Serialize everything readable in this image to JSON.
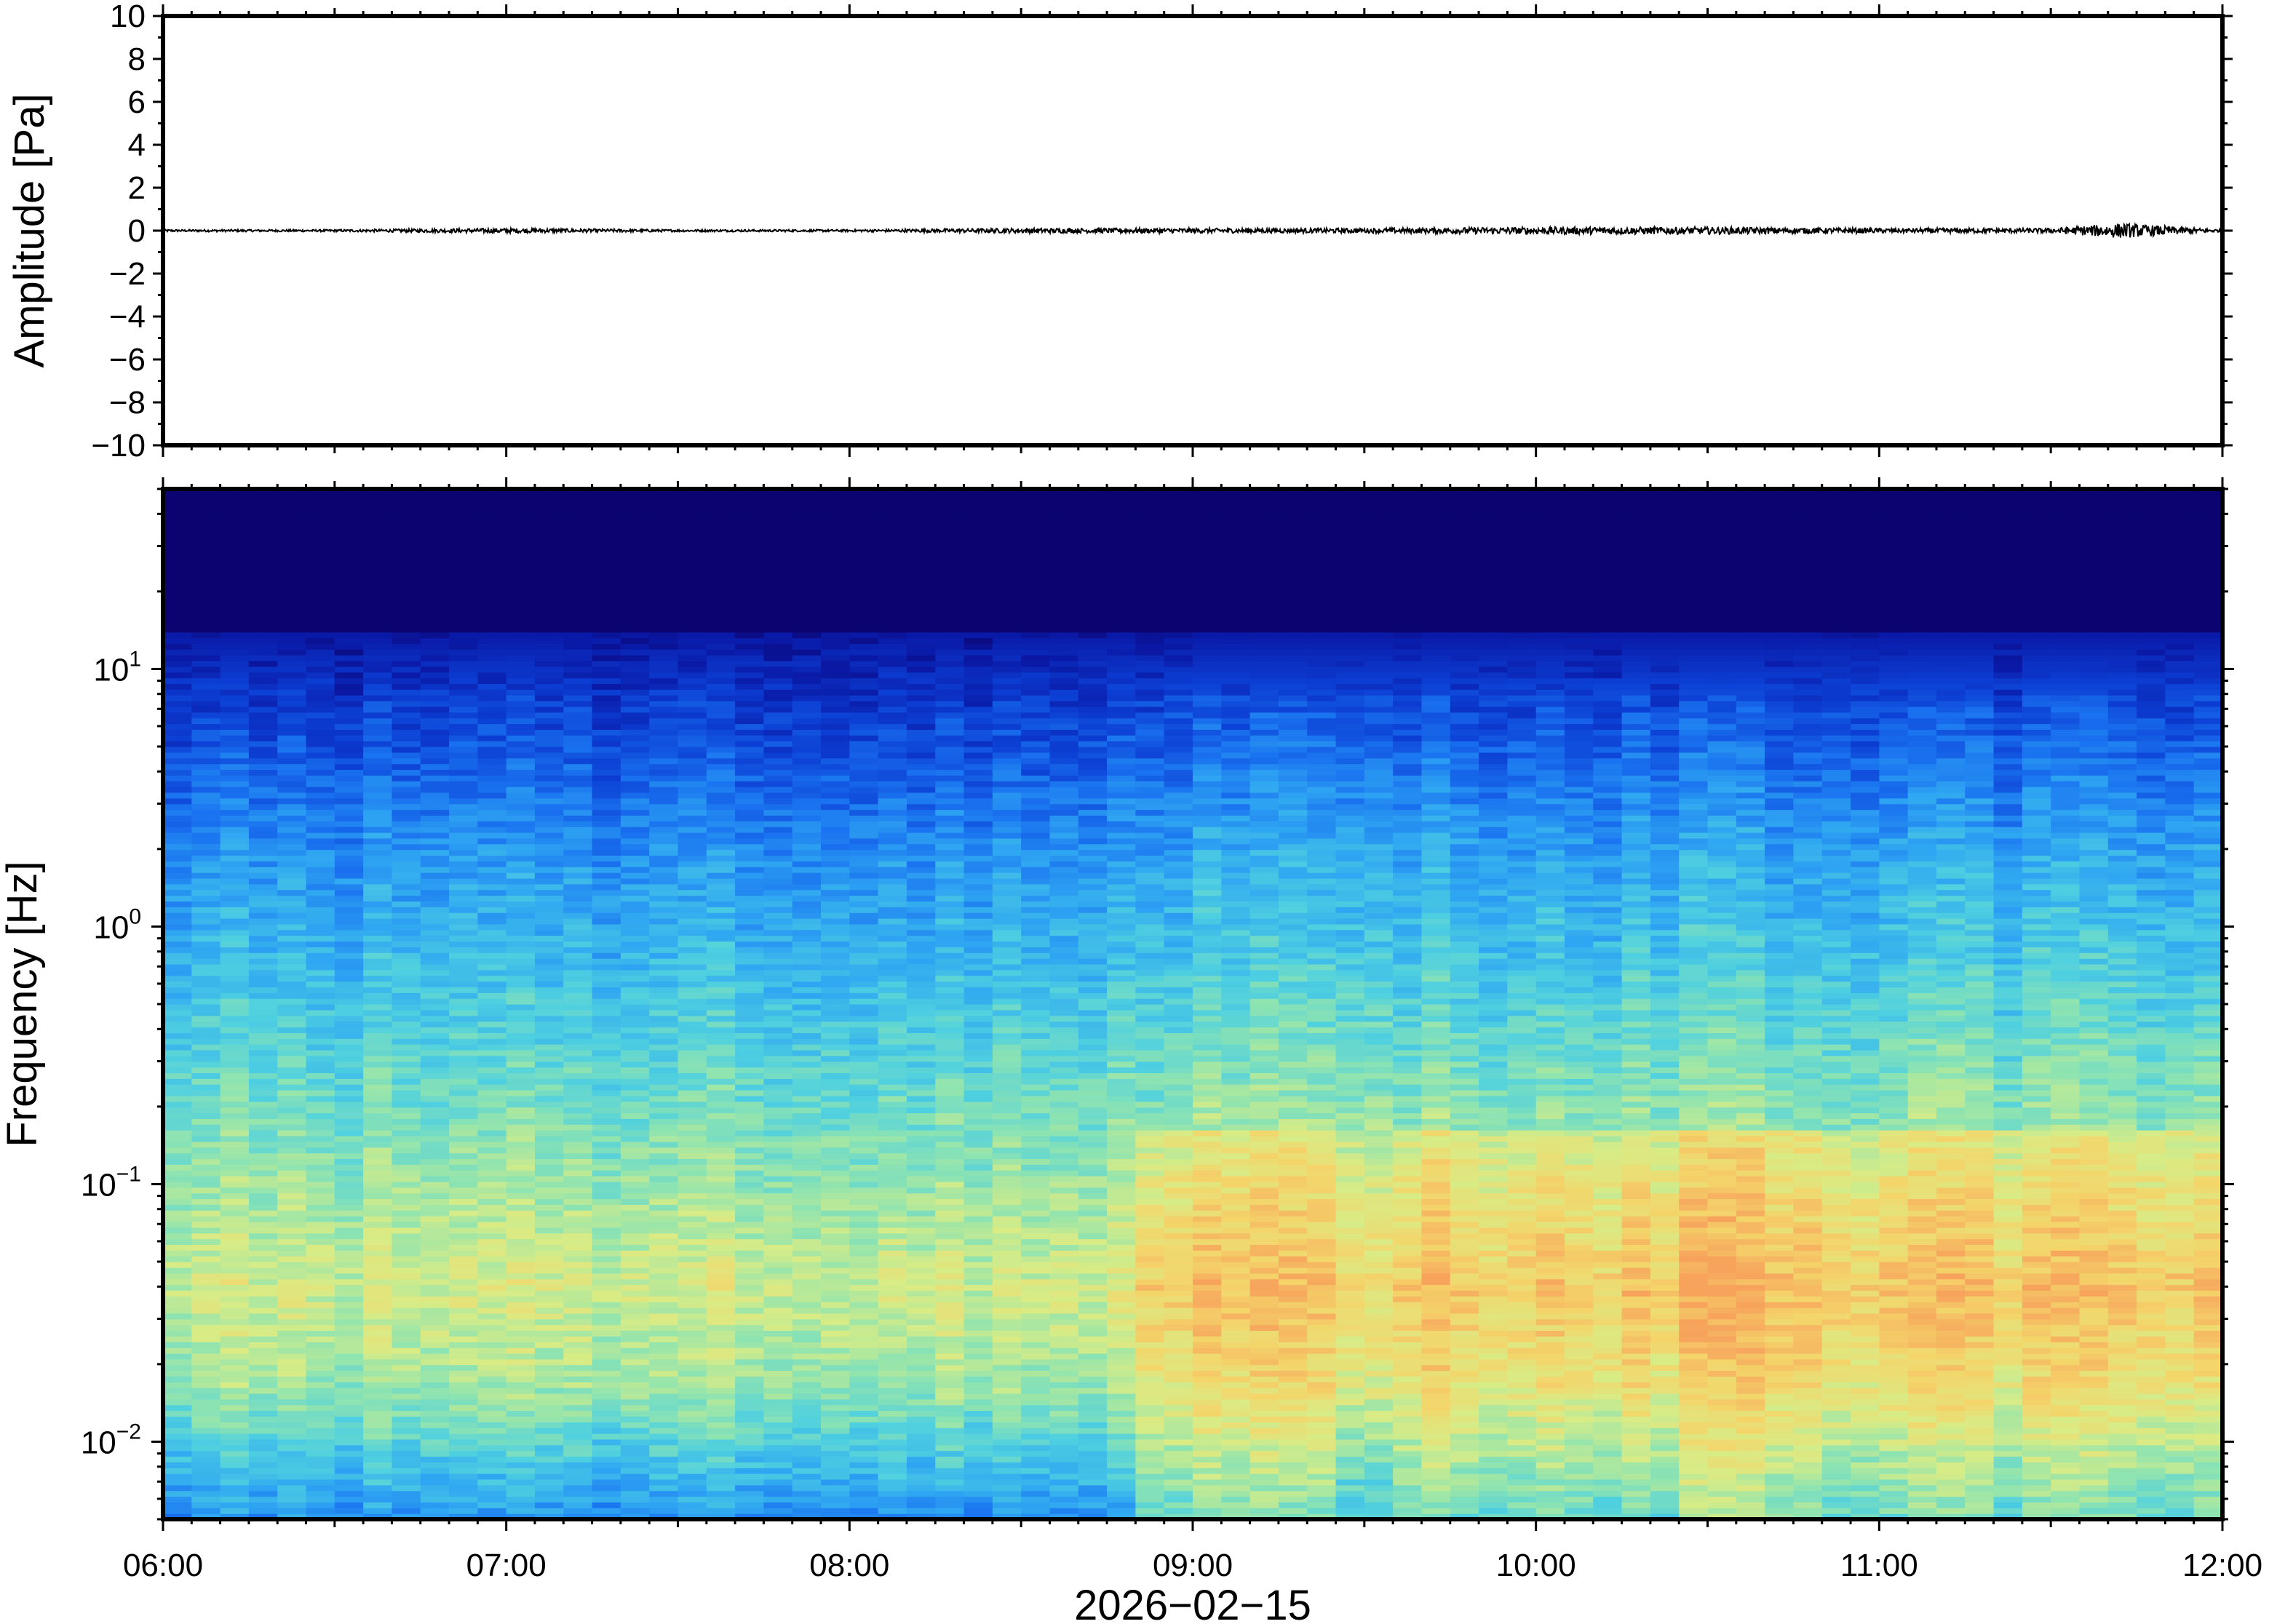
{
  "colors": {
    "waveform": "#000000",
    "frame": "#000000",
    "colormap": [
      "#0b0470",
      "#0a1aa8",
      "#0c3fd4",
      "#1a73f0",
      "#2fa6f2",
      "#4fd0e0",
      "#8fe4b0",
      "#d8ec86",
      "#f4d56a",
      "#f7a35c"
    ]
  },
  "chart_data": [
    {
      "type": "line",
      "ylabel": "Amplitude [Pa]",
      "xlim": [
        "06:00",
        "12:00"
      ],
      "ylim": [
        -10,
        10
      ],
      "y_ticks": [
        10,
        8,
        6,
        4,
        2,
        0,
        -2,
        -4,
        -6,
        -8,
        -10
      ],
      "y_tick_labels": [
        "10",
        "8",
        "6",
        "4",
        "2",
        "0",
        "−2",
        "−4",
        "−6",
        "−8",
        "−10"
      ],
      "series": [
        {
          "x": [
            "06:00",
            "06:30",
            "07:00",
            "07:30",
            "08:00",
            "08:30",
            "09:00",
            "09:30",
            "10:00",
            "10:30",
            "11:00",
            "11:30",
            "11:42",
            "12:00"
          ],
          "y": [
            0,
            0,
            0.1,
            0,
            0,
            0.1,
            0.1,
            0.1,
            0.2,
            0.2,
            0.1,
            0.1,
            0.5,
            0
          ]
        }
      ]
    },
    {
      "type": "heatmap",
      "ylabel": "Frequency [Hz]",
      "xlabel": "2026−02−15",
      "yscale": "log",
      "ylim": [
        0.005,
        50
      ],
      "y_ticks": [
        0.01,
        0.1,
        1,
        10
      ],
      "y_tick_labels": [
        {
          "base": "10",
          "exp": "−2"
        },
        {
          "base": "10",
          "exp": "−1"
        },
        {
          "base": "10",
          "exp": "0"
        },
        {
          "base": "10",
          "exp": "1"
        }
      ],
      "x_ticks": [
        "06:00",
        "07:00",
        "08:00",
        "09:00",
        "10:00",
        "11:00",
        "12:00"
      ],
      "x_tick_labels": [
        "06:00",
        "07:00",
        "08:00",
        "09:00",
        "10:00",
        "11:00",
        "12:00"
      ],
      "grid": false
    }
  ]
}
